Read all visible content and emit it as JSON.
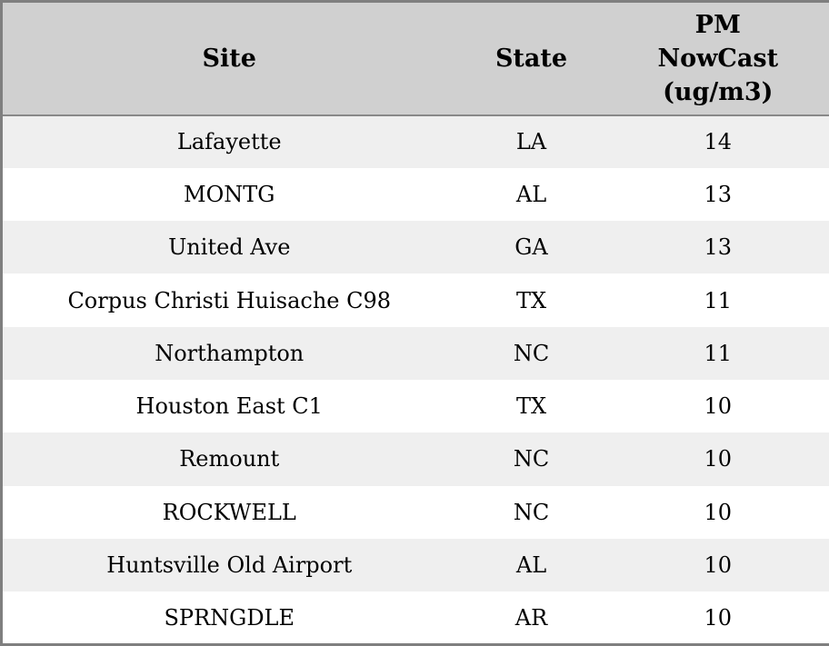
{
  "table": {
    "columns": [
      {
        "label": "Site"
      },
      {
        "label": "State"
      },
      {
        "label": "PM NowCast (ug/m3)"
      }
    ],
    "rows": [
      {
        "site": "Lafayette",
        "state": "LA",
        "pm_nowcast": 14
      },
      {
        "site": "MONTG",
        "state": "AL",
        "pm_nowcast": 13
      },
      {
        "site": "United Ave",
        "state": "GA",
        "pm_nowcast": 13
      },
      {
        "site": "Corpus Christi Huisache C98",
        "state": "TX",
        "pm_nowcast": 11
      },
      {
        "site": "Northampton",
        "state": "NC",
        "pm_nowcast": 11
      },
      {
        "site": "Houston East C1",
        "state": "TX",
        "pm_nowcast": 10
      },
      {
        "site": "Remount",
        "state": "NC",
        "pm_nowcast": 10
      },
      {
        "site": "ROCKWELL",
        "state": "NC",
        "pm_nowcast": 10
      },
      {
        "site": "Huntsville Old Airport",
        "state": "AL",
        "pm_nowcast": 10
      },
      {
        "site": "SPRNGDLE",
        "state": "AR",
        "pm_nowcast": 10
      }
    ]
  },
  "colors": {
    "header_bg": "#d0d0d0",
    "row_alt_bg": "#efefef",
    "row_bg": "#ffffff",
    "border": "#7f7f7f",
    "text": "#000000"
  },
  "chart_data": {
    "type": "table",
    "title": "",
    "columns": [
      "Site",
      "State",
      "PM NowCast (ug/m3)"
    ],
    "rows": [
      [
        "Lafayette",
        "LA",
        14
      ],
      [
        "MONTG",
        "AL",
        13
      ],
      [
        "United Ave",
        "GA",
        13
      ],
      [
        "Corpus Christi Huisache C98",
        "TX",
        11
      ],
      [
        "Northampton",
        "NC",
        11
      ],
      [
        "Houston East C1",
        "TX",
        10
      ],
      [
        "Remount",
        "NC",
        10
      ],
      [
        "ROCKWELL",
        "NC",
        10
      ],
      [
        "Huntsville Old Airport",
        "AL",
        10
      ],
      [
        "SPRNGDLE",
        "AR",
        10
      ]
    ]
  }
}
